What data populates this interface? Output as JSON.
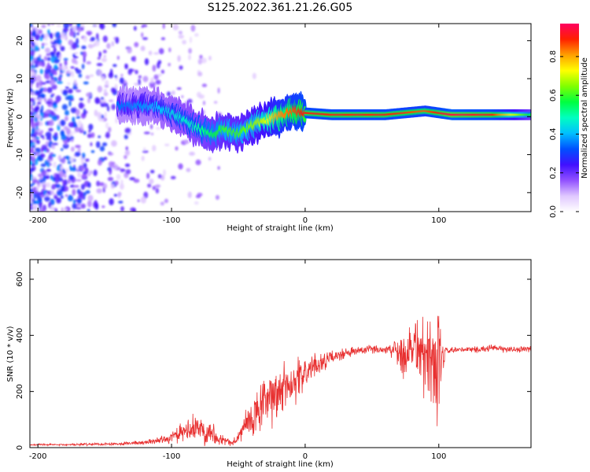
{
  "figure": {
    "title": "S125.2022.361.21.26.G05"
  },
  "chart_data": [
    {
      "type": "heatmap",
      "xlabel": "Height of straight line (km)",
      "ylabel": "Frequency (Hz)",
      "xlim": [
        -206,
        169
      ],
      "ylim": [
        -25,
        24.5
      ],
      "xticks": [
        -200,
        -100,
        0,
        100
      ],
      "yticks": [
        -20,
        -10,
        0,
        10,
        20
      ],
      "xtick_labels": [
        "-200",
        "-100",
        "0",
        "100"
      ],
      "ytick_labels": [
        "-20",
        "-10",
        "0",
        "10",
        "20"
      ],
      "colorbar": {
        "label": "Normalized spectral amplitude",
        "range": [
          0,
          0.97
        ],
        "ticks": [
          0,
          0.2,
          0.4,
          0.6,
          0.8
        ],
        "tick_labels": [
          "0.0",
          "0.2",
          "0.4",
          "0.6",
          "0.8"
        ],
        "colors": [
          "#ffffff",
          "#e0c8ff",
          "#9050ff",
          "#4010ff",
          "#0050ff",
          "#00c0ff",
          "#00ffc0",
          "#00ff40",
          "#80ff00",
          "#ffff00",
          "#ffa000",
          "#ff2000",
          "#ff0060"
        ]
      },
      "ridge": {
        "x": [
          -130,
          -110,
          -95,
          -80,
          -70,
          -60,
          -50,
          -40,
          -30,
          -20,
          -10,
          0,
          20,
          60,
          90,
          110,
          140,
          169
        ],
        "y": [
          3,
          2.5,
          0,
          -3,
          -4.5,
          -3.5,
          -4.5,
          -2.5,
          -1,
          0,
          1.5,
          1,
          0.5,
          0.5,
          1.5,
          0.5,
          0.5,
          0.5
        ],
        "amplitude": [
          0.35,
          0.4,
          0.45,
          0.5,
          0.55,
          0.6,
          0.6,
          0.65,
          0.7,
          0.8,
          0.85,
          0.9,
          0.9,
          0.9,
          0.85,
          0.95,
          0.9,
          0.55
        ]
      }
    },
    {
      "type": "line",
      "xlabel": "Height of straight line (km)",
      "ylabel": "SNR (10 * v/v)",
      "xlim": [
        -206,
        169
      ],
      "ylim": [
        0,
        670
      ],
      "xticks": [
        -200,
        -100,
        0,
        100
      ],
      "yticks": [
        0,
        200,
        400,
        600
      ],
      "xtick_labels": [
        "-200",
        "-100",
        "0",
        "100"
      ],
      "ytick_labels": [
        "0",
        "200",
        "400",
        "600"
      ],
      "color": "#e83030",
      "series": [
        {
          "x": [
            -206,
            -180,
            -160,
            -140,
            -120,
            -105,
            -95,
            -88,
            -80,
            -70,
            -65,
            -55,
            -50,
            -45,
            -40,
            -35,
            -30,
            -25,
            -20,
            -15,
            -10,
            -5,
            0,
            10,
            20,
            30,
            40,
            50,
            60,
            70,
            75,
            80,
            85,
            90,
            95,
            100,
            105,
            110,
            120,
            130,
            140,
            150,
            160,
            169
          ],
          "y": [
            10,
            10,
            12,
            14,
            18,
            30,
            45,
            60,
            70,
            55,
            35,
            15,
            35,
            80,
            95,
            130,
            160,
            170,
            200,
            220,
            235,
            245,
            265,
            300,
            320,
            335,
            345,
            350,
            350,
            350,
            330,
            370,
            360,
            310,
            330,
            250,
            345,
            345,
            350,
            350,
            355,
            350,
            350,
            350
          ],
          "amp": [
            3,
            4,
            5,
            6,
            8,
            15,
            30,
            45,
            55,
            45,
            25,
            10,
            25,
            60,
            70,
            90,
            100,
            100,
            110,
            100,
            90,
            75,
            60,
            40,
            25,
            20,
            18,
            15,
            15,
            60,
            110,
            120,
            140,
            150,
            180,
            220,
            15,
            12,
            12,
            12,
            12,
            12,
            12,
            12
          ]
        }
      ]
    }
  ]
}
